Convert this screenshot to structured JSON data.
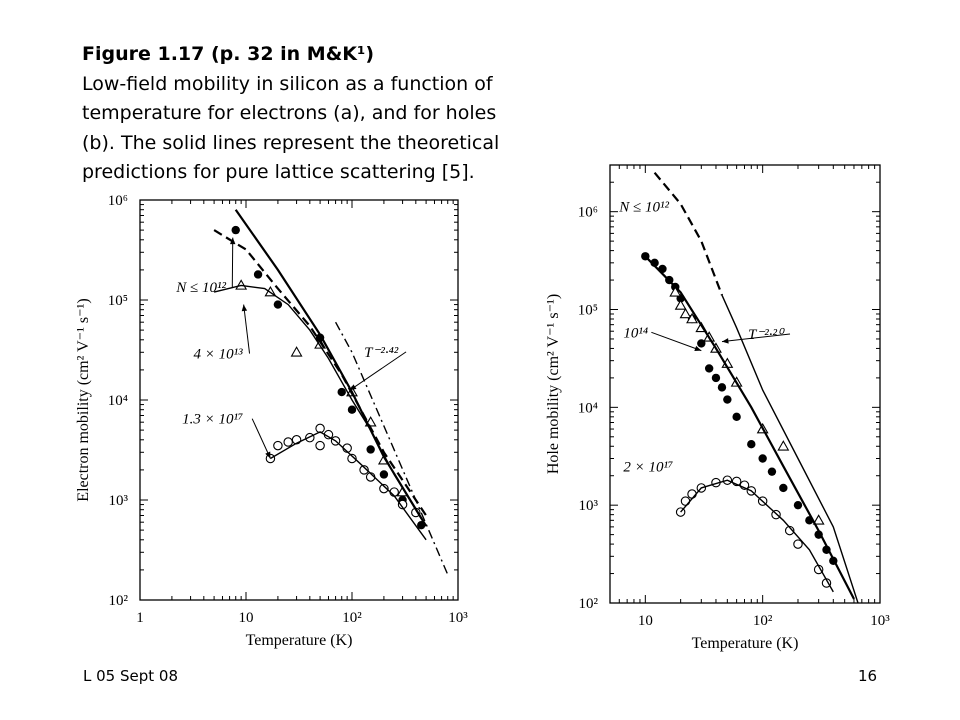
{
  "caption": {
    "title": "Figure 1.17  (p. 32 in M&K¹)",
    "lines": [
      "Low-field mobility in silicon as a function of",
      "temperature for electrons (a), and for holes",
      "(b). The solid lines represent the theoretical",
      "predictions for pure lattice scattering [5]."
    ]
  },
  "footer": {
    "left": "L 05 Sept 08",
    "right": "16"
  },
  "chart_data": [
    {
      "type": "scatter",
      "xlabel": "Temperature (K)",
      "ylabel": "Electron mobility (cm² V⁻¹ s⁻¹)",
      "x_scale": "log",
      "y_scale": "log",
      "xlim": [
        1,
        1000
      ],
      "ylim": [
        100,
        1000000
      ],
      "x_ticks": [
        {
          "v": 1,
          "t": "1"
        },
        {
          "v": 10,
          "t": "10"
        },
        {
          "v": 100,
          "t": "10²"
        },
        {
          "v": 1000,
          "t": "10³"
        }
      ],
      "y_ticks": [
        {
          "v": 100,
          "t": "10²"
        },
        {
          "v": 1000,
          "t": "10³"
        },
        {
          "v": 10000,
          "t": "10⁴"
        },
        {
          "v": 100000,
          "t": "10⁵"
        },
        {
          "v": 1000000,
          "t": "10⁶"
        }
      ],
      "annotations": [
        {
          "text": "N ≤ 10¹²",
          "at": [
            2.2,
            120000
          ],
          "arrow_to": [
            7.5,
            420000
          ]
        },
        {
          "text": "4 × 10¹³",
          "at": [
            3.2,
            26000
          ],
          "arrow_to": [
            9.5,
            90000
          ]
        },
        {
          "text": "1.3 × 10¹⁷",
          "at": [
            2.5,
            5800
          ],
          "arrow_to": [
            17,
            2600
          ]
        },
        {
          "text": "T⁻²·⁴²",
          "at": [
            130,
            27000
          ],
          "arrow_to": [
            95,
            12500
          ]
        }
      ],
      "series": [
        {
          "marker": "filled-circle",
          "points": [
            [
              8,
              500000
            ],
            [
              13,
              180000
            ],
            [
              20,
              90000
            ],
            [
              50,
              42000
            ],
            [
              80,
              12000
            ],
            [
              100,
              8000
            ],
            [
              150,
              3200
            ],
            [
              200,
              1800
            ],
            [
              300,
              1000
            ],
            [
              450,
              560
            ]
          ]
        },
        {
          "marker": "open-triangle",
          "points": [
            [
              9,
              140000
            ],
            [
              17,
              120000
            ],
            [
              30,
              30000
            ],
            [
              50,
              36000
            ],
            [
              100,
              12000
            ],
            [
              150,
              6000
            ],
            [
              200,
              2500
            ],
            [
              300,
              1200
            ]
          ]
        },
        {
          "marker": "open-circle",
          "points": [
            [
              17,
              2600
            ],
            [
              20,
              3500
            ],
            [
              25,
              3800
            ],
            [
              30,
              4000
            ],
            [
              40,
              4200
            ],
            [
              50,
              5200
            ],
            [
              50,
              3500
            ],
            [
              60,
              4500
            ],
            [
              70,
              3900
            ],
            [
              90,
              3300
            ],
            [
              100,
              2600
            ],
            [
              130,
              2000
            ],
            [
              150,
              1700
            ],
            [
              200,
              1300
            ],
            [
              250,
              1200
            ],
            [
              300,
              900
            ],
            [
              400,
              750
            ]
          ]
        },
        {
          "style": "solid",
          "points": [
            [
              8,
              800000
            ],
            [
              20,
              200000
            ],
            [
              50,
              45000
            ],
            [
              100,
              12000
            ],
            [
              200,
              2700
            ],
            [
              500,
              550
            ]
          ]
        },
        {
          "style": "dashed",
          "points": [
            [
              5,
              500000
            ],
            [
              10,
              320000
            ],
            [
              20,
              130000
            ],
            [
              40,
              55000
            ],
            [
              80,
              18000
            ],
            [
              200,
              3000
            ],
            [
              400,
              1000
            ],
            [
              500,
              700
            ]
          ]
        },
        {
          "style": "solid",
          "points": [
            [
              5,
              120000
            ],
            [
              9,
              140000
            ],
            [
              15,
              130000
            ],
            [
              25,
              90000
            ],
            [
              40,
              50000
            ],
            [
              60,
              26000
            ],
            [
              100,
              10000
            ],
            [
              150,
              5000
            ],
            [
              250,
              1800
            ],
            [
              450,
              650
            ]
          ]
        },
        {
          "style": "solid",
          "points": [
            [
              17,
              2600
            ],
            [
              30,
              3700
            ],
            [
              50,
              4800
            ],
            [
              70,
              3900
            ],
            [
              120,
              2300
            ],
            [
              250,
              1100
            ],
            [
              500,
              400
            ]
          ]
        },
        {
          "style": "dash-dot",
          "points": [
            [
              70,
              60000
            ],
            [
              100,
              30000
            ],
            [
              200,
              5500
            ],
            [
              400,
              1000
            ],
            [
              800,
              180
            ]
          ]
        }
      ]
    },
    {
      "type": "scatter",
      "xlabel": "Temperature (K)",
      "ylabel": "Hole mobility (cm² V⁻¹ s⁻¹)",
      "x_scale": "log",
      "y_scale": "log",
      "xlim": [
        5,
        1000
      ],
      "ylim": [
        100,
        3000000
      ],
      "x_ticks": [
        {
          "v": 10,
          "t": "10"
        },
        {
          "v": 100,
          "t": "10²"
        },
        {
          "v": 1000,
          "t": "10³"
        }
      ],
      "y_ticks": [
        {
          "v": 100,
          "t": "10²"
        },
        {
          "v": 1000,
          "t": "10³"
        },
        {
          "v": 10000,
          "t": "10⁴"
        },
        {
          "v": 100000,
          "t": "10⁵"
        },
        {
          "v": 1000000,
          "t": "10⁶"
        }
      ],
      "annotations": [
        {
          "text": "N ≤ 10¹²",
          "at": [
            6,
            1000000
          ],
          "arrow_to": null
        },
        {
          "text": "10¹⁴",
          "at": [
            6.5,
            52000
          ],
          "arrow_to": [
            30,
            38000
          ]
        },
        {
          "text": "T⁻²·²⁰",
          "at": [
            75,
            50000
          ],
          "arrow_to": [
            45,
            47000
          ]
        },
        {
          "text": "2 × 10¹⁷",
          "at": [
            6.5,
            2200
          ],
          "arrow_to": null
        }
      ],
      "series": [
        {
          "marker": "filled-circle",
          "points": [
            [
              10,
              350000
            ],
            [
              12,
              300000
            ],
            [
              14,
              260000
            ],
            [
              16,
              200000
            ],
            [
              18,
              170000
            ],
            [
              20,
              130000
            ],
            [
              25,
              80000
            ],
            [
              30,
              45000
            ],
            [
              35,
              25000
            ],
            [
              40,
              20000
            ],
            [
              45,
              16000
            ],
            [
              50,
              12000
            ],
            [
              60,
              8000
            ],
            [
              80,
              4200
            ],
            [
              100,
              3000
            ],
            [
              120,
              2200
            ],
            [
              150,
              1500
            ],
            [
              200,
              1000
            ],
            [
              250,
              700
            ],
            [
              300,
              500
            ],
            [
              350,
              350
            ],
            [
              400,
              270
            ]
          ]
        },
        {
          "marker": "open-triangle",
          "points": [
            [
              18,
              150000
            ],
            [
              20,
              110000
            ],
            [
              22,
              90000
            ],
            [
              25,
              80000
            ],
            [
              30,
              65000
            ],
            [
              35,
              52000
            ],
            [
              40,
              40000
            ],
            [
              50,
              28000
            ],
            [
              60,
              18000
            ],
            [
              100,
              6000
            ],
            [
              150,
              4000
            ],
            [
              300,
              700
            ]
          ]
        },
        {
          "marker": "open-circle",
          "points": [
            [
              20,
              850
            ],
            [
              22,
              1100
            ],
            [
              25,
              1300
            ],
            [
              30,
              1500
            ],
            [
              40,
              1700
            ],
            [
              50,
              1800
            ],
            [
              60,
              1750
            ],
            [
              70,
              1600
            ],
            [
              80,
              1400
            ],
            [
              100,
              1100
            ],
            [
              130,
              800
            ],
            [
              170,
              550
            ],
            [
              200,
              400
            ],
            [
              300,
              220
            ],
            [
              350,
              160
            ]
          ]
        },
        {
          "style": "solid",
          "points": [
            [
              10,
              350000
            ],
            [
              20,
              150000
            ],
            [
              40,
              40000
            ],
            [
              80,
              10000
            ],
            [
              150,
              2500
            ],
            [
              300,
              550
            ],
            [
              600,
              110
            ]
          ]
        },
        {
          "style": "dashed",
          "points": [
            [
              12,
              2500000
            ],
            [
              20,
              1200000
            ],
            [
              30,
              500000
            ],
            [
              45,
              140000
            ]
          ]
        },
        {
          "style": "solid",
          "points": [
            [
              45,
              140000
            ],
            [
              60,
              65000
            ],
            [
              100,
              15000
            ],
            [
              200,
              3000
            ],
            [
              400,
              600
            ],
            [
              650,
              100
            ]
          ]
        },
        {
          "style": "solid",
          "points": [
            [
              20,
              850
            ],
            [
              30,
              1500
            ],
            [
              50,
              1800
            ],
            [
              80,
              1400
            ],
            [
              150,
              700
            ],
            [
              250,
              350
            ],
            [
              400,
              130
            ]
          ]
        }
      ]
    }
  ]
}
